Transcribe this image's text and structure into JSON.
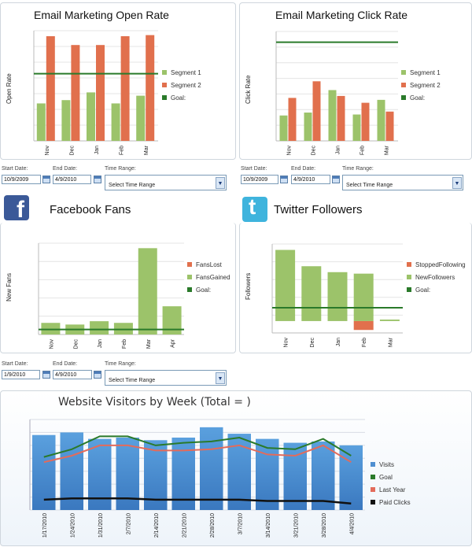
{
  "colors": {
    "segment1": "#9cc36a",
    "segment2": "#e1704d",
    "goal": "#2a7a2a",
    "visits": "#4f8fd1",
    "lastyear": "#e36b5b",
    "paid": "#111111",
    "fb": "#3b5998",
    "tw": "#3fb4dd"
  },
  "open_rate": {
    "title": "Email Marketing Open Rate",
    "ylabel": "Open Rate",
    "legend": [
      "Segment 1",
      "Segment 2",
      "Goal:"
    ]
  },
  "click_rate": {
    "title": "Email Marketing Click Rate",
    "ylabel": "Click Rate",
    "legend": [
      "Segment 1",
      "Segment 2",
      "Goal:"
    ]
  },
  "facebook": {
    "title": "Facebook Fans",
    "ylabel": "New Fans",
    "legend": [
      "FansLost",
      "FansGained",
      "Goal:"
    ],
    "icon": "facebook-icon",
    "glyph": "f"
  },
  "twitter": {
    "title": "Twitter Followers",
    "ylabel": "Followers",
    "legend": [
      "StoppedFollowing",
      "NewFollowers",
      "Goal:"
    ],
    "icon": "twitter-icon",
    "glyph": "t"
  },
  "visitors": {
    "title": "Website Visitors by Week (Total =            )",
    "legend": [
      "Visits",
      "Goal",
      "Last Year",
      "Paid Clicks"
    ]
  },
  "controls": [
    {
      "start_label": "Start Date:",
      "start": "10/9/2009",
      "end_label": "End Date:",
      "end": "4/9/2010",
      "range_label": "Time Range:",
      "range": "Select Time Range"
    },
    {
      "start_label": "Start Date:",
      "start": "10/9/2009",
      "end_label": "End Date:",
      "end": "4/9/2010",
      "range_label": "Time Range:",
      "range": "Select Time Range"
    },
    {
      "start_label": "Start Date:",
      "start": "1/9/2010",
      "end_label": "End Date:",
      "end": "4/9/2010",
      "range_label": "Time Range:",
      "range": "Select Time Range"
    }
  ],
  "chart_data": [
    {
      "type": "bar",
      "title": "Email Marketing Open Rate",
      "ylabel": "Open Rate",
      "categories": [
        "Nov",
        "Dec",
        "Jan",
        "Feb",
        "Mar"
      ],
      "series": [
        {
          "name": "Segment 1",
          "values": [
            34,
            37,
            44,
            34,
            41
          ]
        },
        {
          "name": "Segment 2",
          "values": [
            95,
            87,
            87,
            95,
            96
          ]
        }
      ],
      "goal": {
        "name": "Goal:",
        "value": 61
      },
      "ylim": [
        0,
        100
      ],
      "grid": true,
      "legend": "right"
    },
    {
      "type": "bar",
      "title": "Email Marketing Click Rate",
      "ylabel": "Click Rate",
      "categories": [
        "Nov",
        "Dec",
        "Jan",
        "Feb",
        "Mar"
      ],
      "series": [
        {
          "name": "Segment 1",
          "values": [
            26,
            29,
            52,
            27,
            42
          ]
        },
        {
          "name": "Segment 2",
          "values": [
            44,
            61,
            46,
            39,
            30
          ]
        }
      ],
      "goal": {
        "name": "Goal:",
        "value": 101
      },
      "ylim": [
        0,
        112
      ],
      "grid": true,
      "legend": "right"
    },
    {
      "type": "bar",
      "title": "Facebook Fans",
      "ylabel": "New Fans",
      "categories": [
        "Nov",
        "Dec",
        "Jan",
        "Feb",
        "Mar",
        "Apr"
      ],
      "series": [
        {
          "name": "FansLost",
          "values": [
            0,
            0,
            0,
            0,
            0,
            0
          ]
        },
        {
          "name": "FansGained",
          "values": [
            7,
            6,
            8,
            7,
            52,
            17
          ]
        }
      ],
      "goal": {
        "name": "Goal:",
        "value": 3
      },
      "ylim": [
        0,
        55
      ],
      "grid": true,
      "legend": "right"
    },
    {
      "type": "bar",
      "title": "Twitter Followers",
      "ylabel": "Followers",
      "categories": [
        "Nov",
        "Dec",
        "Jan",
        "Feb",
        "Mar"
      ],
      "series": [
        {
          "name": "StoppedFollowing",
          "values": [
            0,
            0,
            0,
            -6,
            0
          ]
        },
        {
          "name": "NewFollowers",
          "values": [
            48,
            37,
            33,
            32,
            1
          ]
        }
      ],
      "goal": {
        "name": "Goal:",
        "value": 9
      },
      "ylim": [
        -8,
        52
      ],
      "grid": true,
      "legend": "right"
    },
    {
      "type": "bar",
      "title": "Website Visitors by Week (Total =            )",
      "categories": [
        "1/17/2010",
        "1/24/2010",
        "1/31/2010",
        "2/7/2010",
        "2/14/2010",
        "2/21/2010",
        "2/28/2010",
        "3/7/2010",
        "3/14/2010",
        "3/21/2010",
        "3/28/2010",
        "4/4/2010"
      ],
      "series": [
        {
          "name": "Visits",
          "type": "bar",
          "values": [
            58,
            60,
            55,
            56,
            54,
            56,
            64,
            59,
            55,
            52,
            53,
            50
          ]
        },
        {
          "name": "Goal",
          "type": "line",
          "values": [
            41,
            47,
            57,
            57,
            50,
            52,
            53,
            56,
            48,
            47,
            55,
            42
          ]
        },
        {
          "name": "Last Year",
          "type": "line",
          "values": [
            37,
            42,
            50,
            50,
            46,
            46,
            47,
            50,
            43,
            42,
            50,
            37
          ]
        },
        {
          "name": "Paid Clicks",
          "type": "line",
          "values": [
            8,
            9,
            9,
            9,
            8,
            8,
            8,
            8,
            7,
            7,
            7,
            5
          ]
        }
      ],
      "ylim": [
        0,
        70
      ],
      "grid": true,
      "legend": "right"
    }
  ]
}
